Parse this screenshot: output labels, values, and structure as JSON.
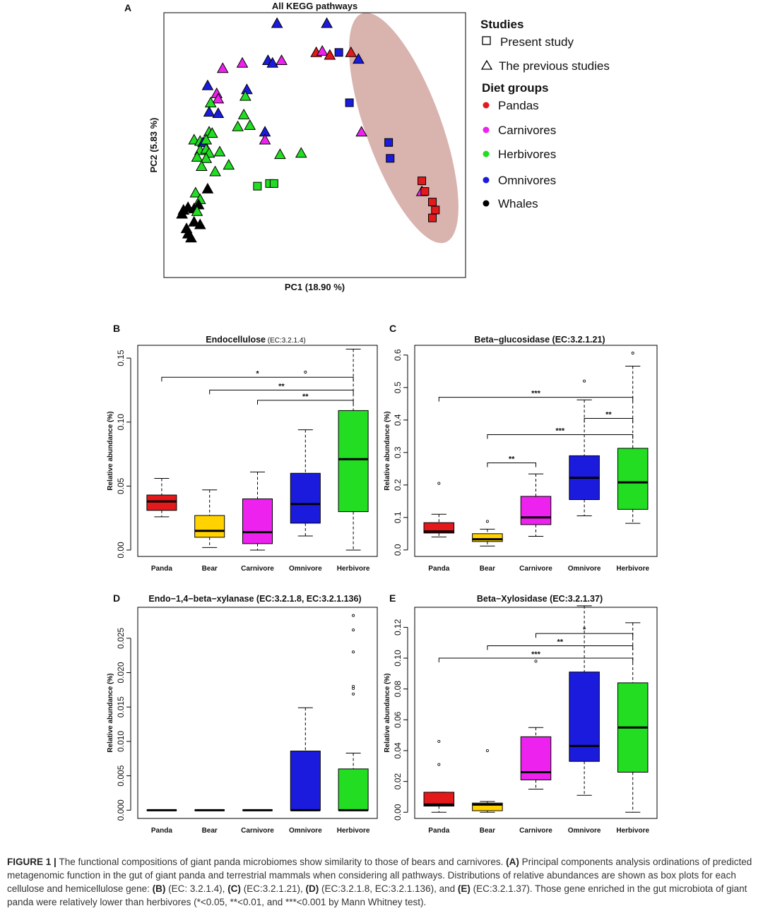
{
  "chart_data": [
    {
      "panel": "A",
      "type": "scatter",
      "title": "All KEGG pathways",
      "xlabel": "PC1 (18.90 %)",
      "ylabel": "PC2 (5.83 %)",
      "xlim": [
        0,
        100
      ],
      "ylim": [
        0,
        100
      ],
      "ticks_shown": false,
      "legend": {
        "position": "right",
        "studies_title": "Studies",
        "studies": [
          {
            "shape": "square",
            "label": "Present study"
          },
          {
            "shape": "triangle",
            "label": "The previous studies"
          }
        ],
        "diet_title": "Diet groups",
        "diet": [
          {
            "group": "panda",
            "label": "Pandas",
            "color": "#e3191c"
          },
          {
            "group": "carnivore",
            "label": "Carnivores",
            "color": "#ee22ee"
          },
          {
            "group": "herbivore",
            "label": "Herbivores",
            "color": "#22dd22"
          },
          {
            "group": "omnivore",
            "label": "Omnivores",
            "color": "#1b1bdd"
          },
          {
            "group": "whale",
            "label": "Whales",
            "color": "#000000"
          }
        ]
      },
      "ellipse": {
        "cx": 79.5,
        "cy": 56.5,
        "rx": 12.5,
        "ry": 46,
        "rotate_deg": -20,
        "color": "#d9b3ad"
      },
      "points": [
        {
          "x": 37.5,
          "y": 96,
          "group": "omnivore",
          "shape": "triangle"
        },
        {
          "x": 54,
          "y": 96,
          "group": "omnivore",
          "shape": "triangle"
        },
        {
          "x": 50.5,
          "y": 85,
          "group": "panda",
          "shape": "triangle"
        },
        {
          "x": 52.5,
          "y": 85.5,
          "group": "carnivore",
          "shape": "triangle"
        },
        {
          "x": 55,
          "y": 84,
          "group": "panda",
          "shape": "triangle"
        },
        {
          "x": 58,
          "y": 85,
          "group": "omnivore",
          "shape": "square"
        },
        {
          "x": 62,
          "y": 85,
          "group": "panda",
          "shape": "triangle"
        },
        {
          "x": 64.5,
          "y": 82.5,
          "group": "omnivore",
          "shape": "triangle"
        },
        {
          "x": 19.5,
          "y": 79,
          "group": "carnivore",
          "shape": "triangle"
        },
        {
          "x": 26,
          "y": 81,
          "group": "carnivore",
          "shape": "triangle"
        },
        {
          "x": 34.5,
          "y": 82,
          "group": "omnivore",
          "shape": "triangle"
        },
        {
          "x": 36,
          "y": 81,
          "group": "omnivore",
          "shape": "triangle"
        },
        {
          "x": 39,
          "y": 82,
          "group": "carnivore",
          "shape": "triangle"
        },
        {
          "x": 14.5,
          "y": 72.5,
          "group": "omnivore",
          "shape": "triangle"
        },
        {
          "x": 17.5,
          "y": 69.5,
          "group": "carnivore",
          "shape": "triangle"
        },
        {
          "x": 18,
          "y": 67.5,
          "group": "carnivore",
          "shape": "triangle"
        },
        {
          "x": 15.5,
          "y": 66,
          "group": "herbivore",
          "shape": "triangle"
        },
        {
          "x": 27.5,
          "y": 71,
          "group": "omnivore",
          "shape": "triangle"
        },
        {
          "x": 27,
          "y": 68.5,
          "group": "herbivore",
          "shape": "triangle"
        },
        {
          "x": 15,
          "y": 62.5,
          "group": "omnivore",
          "shape": "triangle"
        },
        {
          "x": 18,
          "y": 62,
          "group": "omnivore",
          "shape": "triangle"
        },
        {
          "x": 26.5,
          "y": 61.5,
          "group": "herbivore",
          "shape": "triangle"
        },
        {
          "x": 61.5,
          "y": 66,
          "group": "omnivore",
          "shape": "square"
        },
        {
          "x": 24.5,
          "y": 57,
          "group": "herbivore",
          "shape": "triangle"
        },
        {
          "x": 28.5,
          "y": 57.5,
          "group": "herbivore",
          "shape": "triangle"
        },
        {
          "x": 33.5,
          "y": 55,
          "group": "omnivore",
          "shape": "triangle"
        },
        {
          "x": 15,
          "y": 55,
          "group": "herbivore",
          "shape": "triangle"
        },
        {
          "x": 16,
          "y": 54.5,
          "group": "herbivore",
          "shape": "triangle"
        },
        {
          "x": 65.5,
          "y": 55,
          "group": "carnivore",
          "shape": "triangle"
        },
        {
          "x": 10,
          "y": 52,
          "group": "herbivore",
          "shape": "triangle"
        },
        {
          "x": 12,
          "y": 51.5,
          "group": "herbivore",
          "shape": "triangle"
        },
        {
          "x": 13,
          "y": 51,
          "group": "omnivore",
          "shape": "triangle"
        },
        {
          "x": 14,
          "y": 52,
          "group": "herbivore",
          "shape": "triangle"
        },
        {
          "x": 33.5,
          "y": 52,
          "group": "carnivore",
          "shape": "triangle"
        },
        {
          "x": 74.5,
          "y": 51,
          "group": "omnivore",
          "shape": "square"
        },
        {
          "x": 12,
          "y": 48,
          "group": "herbivore",
          "shape": "triangle"
        },
        {
          "x": 14,
          "y": 48.5,
          "group": "herbivore",
          "shape": "triangle"
        },
        {
          "x": 15,
          "y": 47,
          "group": "herbivore",
          "shape": "triangle"
        },
        {
          "x": 18.5,
          "y": 47.5,
          "group": "herbivore",
          "shape": "triangle"
        },
        {
          "x": 11,
          "y": 45.5,
          "group": "herbivore",
          "shape": "triangle"
        },
        {
          "x": 14,
          "y": 45,
          "group": "herbivore",
          "shape": "triangle"
        },
        {
          "x": 38.5,
          "y": 46.5,
          "group": "herbivore",
          "shape": "triangle"
        },
        {
          "x": 45.5,
          "y": 47,
          "group": "herbivore",
          "shape": "triangle"
        },
        {
          "x": 75,
          "y": 45,
          "group": "omnivore",
          "shape": "square"
        },
        {
          "x": 12.5,
          "y": 42,
          "group": "herbivore",
          "shape": "triangle"
        },
        {
          "x": 21.5,
          "y": 42.5,
          "group": "herbivore",
          "shape": "triangle"
        },
        {
          "x": 17,
          "y": 40,
          "group": "herbivore",
          "shape": "triangle"
        },
        {
          "x": 85.5,
          "y": 36.5,
          "group": "panda",
          "shape": "square"
        },
        {
          "x": 31,
          "y": 34.5,
          "group": "herbivore",
          "shape": "square"
        },
        {
          "x": 35,
          "y": 35.5,
          "group": "herbivore",
          "shape": "square"
        },
        {
          "x": 36.5,
          "y": 35.5,
          "group": "herbivore",
          "shape": "square"
        },
        {
          "x": 14.5,
          "y": 33.5,
          "group": "whale",
          "shape": "triangle"
        },
        {
          "x": 10.5,
          "y": 32,
          "group": "herbivore",
          "shape": "triangle"
        },
        {
          "x": 85.5,
          "y": 32.5,
          "group": "carnivore",
          "shape": "triangle"
        },
        {
          "x": 86.5,
          "y": 32.5,
          "group": "panda",
          "shape": "square"
        },
        {
          "x": 12,
          "y": 29.5,
          "group": "herbivore",
          "shape": "triangle"
        },
        {
          "x": 89,
          "y": 28.5,
          "group": "panda",
          "shape": "square"
        },
        {
          "x": 11.5,
          "y": 27.5,
          "group": "whale",
          "shape": "triangle"
        },
        {
          "x": 6.5,
          "y": 25.5,
          "group": "whale",
          "shape": "triangle"
        },
        {
          "x": 8,
          "y": 26.5,
          "group": "whale",
          "shape": "triangle"
        },
        {
          "x": 10,
          "y": 26,
          "group": "whale",
          "shape": "triangle"
        },
        {
          "x": 11,
          "y": 25,
          "group": "herbivore",
          "shape": "triangle"
        },
        {
          "x": 90,
          "y": 25.5,
          "group": "panda",
          "shape": "square"
        },
        {
          "x": 6,
          "y": 24,
          "group": "whale",
          "shape": "triangle"
        },
        {
          "x": 89,
          "y": 22.5,
          "group": "panda",
          "shape": "square"
        },
        {
          "x": 10,
          "y": 21,
          "group": "whale",
          "shape": "triangle"
        },
        {
          "x": 12,
          "y": 20,
          "group": "whale",
          "shape": "triangle"
        },
        {
          "x": 7.5,
          "y": 18.5,
          "group": "whale",
          "shape": "triangle"
        },
        {
          "x": 8,
          "y": 16.5,
          "group": "whale",
          "shape": "triangle"
        },
        {
          "x": 9,
          "y": 15,
          "group": "whale",
          "shape": "triangle"
        }
      ]
    },
    {
      "panel": "B",
      "type": "box",
      "title": "Endocellulose",
      "title_suffix": "(EC:3.2.1.4)",
      "xlabel": "",
      "ylabel": "Relative abundance (%)",
      "categories": [
        "Panda",
        "Bear",
        "Carnivore",
        "Omnivore",
        "Herbivore"
      ],
      "ylim": [
        -0.005,
        0.16
      ],
      "yticks": [
        0.0,
        0.05,
        0.1,
        0.15
      ],
      "ytick_labels": [
        "0.00",
        "0.05",
        "0.10",
        "0.15"
      ],
      "boxes": [
        {
          "category": "Panda",
          "min": 0.026,
          "q1": 0.031,
          "median": 0.038,
          "q3": 0.043,
          "max": 0.056,
          "outliers": [],
          "color": "#e3191c"
        },
        {
          "category": "Bear",
          "min": 0.002,
          "q1": 0.01,
          "median": 0.015,
          "q3": 0.027,
          "max": 0.047,
          "outliers": [],
          "color": "#ffd200"
        },
        {
          "category": "Carnivore",
          "min": 0.0,
          "q1": 0.005,
          "median": 0.014,
          "q3": 0.04,
          "max": 0.061,
          "outliers": [],
          "color": "#ee22ee"
        },
        {
          "category": "Omnivore",
          "min": 0.011,
          "q1": 0.021,
          "median": 0.036,
          "q3": 0.06,
          "max": 0.094,
          "outliers": [
            0.139
          ],
          "color": "#1b1bdd"
        },
        {
          "category": "Herbivore",
          "min": 0.0,
          "q1": 0.03,
          "median": 0.071,
          "q3": 0.109,
          "max": 0.157,
          "outliers": [],
          "color": "#22dd22"
        }
      ],
      "significance": [
        {
          "from": "Panda",
          "to": "Herbivore",
          "y": 0.135,
          "label": "*"
        },
        {
          "from": "Bear",
          "to": "Herbivore",
          "y": 0.125,
          "label": "**"
        },
        {
          "from": "Carnivore",
          "to": "Herbivore",
          "y": 0.117,
          "label": "**"
        }
      ]
    },
    {
      "panel": "C",
      "type": "box",
      "title": "Beta−glucosidase (EC:3.2.1.21)",
      "xlabel": "",
      "ylabel": "Relative abundance (%)",
      "categories": [
        "Panda",
        "Bear",
        "Carnivore",
        "Omnivore",
        "Herbivore"
      ],
      "ylim": [
        -0.02,
        0.63
      ],
      "yticks": [
        0.0,
        0.1,
        0.2,
        0.3,
        0.4,
        0.5,
        0.6
      ],
      "ytick_labels": [
        "0.0",
        "0.1",
        "0.2",
        "0.3",
        "0.4",
        "0.5",
        "0.6"
      ],
      "boxes": [
        {
          "category": "Panda",
          "min": 0.04,
          "q1": 0.052,
          "median": 0.057,
          "q3": 0.084,
          "max": 0.11,
          "outliers": [
            0.205
          ],
          "color": "#e3191c"
        },
        {
          "category": "Bear",
          "min": 0.012,
          "q1": 0.026,
          "median": 0.033,
          "q3": 0.05,
          "max": 0.064,
          "outliers": [
            0.088
          ],
          "color": "#ffd200"
        },
        {
          "category": "Carnivore",
          "min": 0.042,
          "q1": 0.078,
          "median": 0.1,
          "q3": 0.165,
          "max": 0.234,
          "outliers": [],
          "color": "#ee22ee"
        },
        {
          "category": "Omnivore",
          "min": 0.105,
          "q1": 0.155,
          "median": 0.222,
          "q3": 0.29,
          "max": 0.462,
          "outliers": [
            0.52
          ],
          "color": "#1b1bdd"
        },
        {
          "category": "Herbivore",
          "min": 0.082,
          "q1": 0.125,
          "median": 0.208,
          "q3": 0.313,
          "max": 0.566,
          "outliers": [
            0.606
          ],
          "color": "#22dd22"
        }
      ],
      "significance": [
        {
          "from": "Panda",
          "to": "Herbivore",
          "y": 0.47,
          "label": "***"
        },
        {
          "from": "Omnivore",
          "to": "Herbivore",
          "y": 0.405,
          "label": "**"
        },
        {
          "from": "Bear",
          "to": "Herbivore",
          "y": 0.355,
          "label": "***"
        },
        {
          "from": "Bear",
          "to": "Carnivore",
          "y": 0.268,
          "label": "**"
        }
      ]
    },
    {
      "panel": "D",
      "type": "box",
      "title": "Endo−1,4−beta−xylanase (EC:3.2.1.8, EC:3.2.1.136)",
      "xlabel": "",
      "ylabel": "Relative abundance (%)",
      "categories": [
        "Panda",
        "Bear",
        "Carnivore",
        "Omnivore",
        "Herbivore"
      ],
      "ylim": [
        -0.0012,
        0.0295
      ],
      "yticks": [
        0.0,
        0.005,
        0.01,
        0.015,
        0.02,
        0.025
      ],
      "ytick_labels": [
        "0.000",
        "0.005",
        "0.010",
        "0.015",
        "0.020",
        "0.025"
      ],
      "boxes": [
        {
          "category": "Panda",
          "min": 0,
          "q1": 0,
          "median": 0,
          "q3": 0,
          "max": 0,
          "outliers": [],
          "color": "#e3191c"
        },
        {
          "category": "Bear",
          "min": 0,
          "q1": 0,
          "median": 0,
          "q3": 0,
          "max": 0,
          "outliers": [],
          "color": "#ffd200"
        },
        {
          "category": "Carnivore",
          "min": 0,
          "q1": 0,
          "median": 0,
          "q3": 0,
          "max": 0,
          "outliers": [],
          "color": "#ee22ee"
        },
        {
          "category": "Omnivore",
          "min": 0.0,
          "q1": 0.0,
          "median": 0.0,
          "q3": 0.0086,
          "max": 0.0149,
          "outliers": [],
          "color": "#1b1bdd"
        },
        {
          "category": "Herbivore",
          "min": 0.0,
          "q1": 0.0,
          "median": 0.0,
          "q3": 0.006,
          "max": 0.0083,
          "outliers": [
            0.0169,
            0.0177,
            0.018,
            0.023,
            0.0262,
            0.0283
          ],
          "color": "#22dd22"
        }
      ],
      "significance": []
    },
    {
      "panel": "E",
      "type": "box",
      "title": "Beta−Xylosidase (EC:3.2.1.37)",
      "xlabel": "",
      "ylabel": "Relative abundance (%)",
      "categories": [
        "Panda",
        "Bear",
        "Carnivore",
        "Omnivore",
        "Herbivore"
      ],
      "ylim": [
        -0.004,
        0.133
      ],
      "yticks": [
        0.0,
        0.02,
        0.04,
        0.06,
        0.08,
        0.1,
        0.12
      ],
      "ytick_labels": [
        "0.00",
        "0.02",
        "0.04",
        "0.06",
        "0.08",
        "0.10",
        "0.12"
      ],
      "boxes": [
        {
          "category": "Panda",
          "min": 0.0,
          "q1": 0.004,
          "median": 0.005,
          "q3": 0.013,
          "max": 0.013,
          "outliers": [
            0.031,
            0.046
          ],
          "color": "#e3191c"
        },
        {
          "category": "Bear",
          "min": 0.0,
          "q1": 0.001,
          "median": 0.005,
          "q3": 0.006,
          "max": 0.007,
          "outliers": [
            0.04
          ],
          "color": "#ffd200"
        },
        {
          "category": "Carnivore",
          "min": 0.015,
          "q1": 0.021,
          "median": 0.026,
          "q3": 0.049,
          "max": 0.055,
          "outliers": [
            0.098
          ],
          "color": "#ee22ee"
        },
        {
          "category": "Omnivore",
          "min": 0.011,
          "q1": 0.033,
          "median": 0.043,
          "q3": 0.091,
          "max": 0.134,
          "outliers": [],
          "color": "#1b1bdd"
        },
        {
          "category": "Herbivore",
          "min": 0.0,
          "q1": 0.026,
          "median": 0.055,
          "q3": 0.084,
          "max": 0.123,
          "outliers": [],
          "color": "#22dd22"
        }
      ],
      "significance": [
        {
          "from": "Carnivore",
          "to": "Herbivore",
          "y": 0.116,
          "label": "*"
        },
        {
          "from": "Bear",
          "to": "Herbivore",
          "y": 0.108,
          "label": "**"
        },
        {
          "from": "Panda",
          "to": "Herbivore",
          "y": 0.1,
          "label": "***"
        }
      ]
    }
  ],
  "caption": {
    "label": "FIGURE 1 |",
    "segments": [
      {
        "t": "The functional compositions of giant panda microbiomes show similarity to those of bears and carnivores. ",
        "b": false
      },
      {
        "t": "(A)",
        "b": true
      },
      {
        "t": " Principal components analysis ordinations of predicted metagenomic function in the gut of giant panda and terrestrial mammals when considering all pathways. Distributions of relative abundances are shown as box plots for each cellulose and hemicellulose gene: ",
        "b": false
      },
      {
        "t": "(B)",
        "b": true
      },
      {
        "t": " (EC: 3.2.1.4), ",
        "b": false
      },
      {
        "t": "(C)",
        "b": true
      },
      {
        "t": " (EC:3.2.1.21), ",
        "b": false
      },
      {
        "t": "(D)",
        "b": true
      },
      {
        "t": " (EC:3.2.1.8, EC:3.2.1.136), and ",
        "b": false
      },
      {
        "t": "(E)",
        "b": true
      },
      {
        "t": " (EC:3.2.1.37). Those gene enriched in the gut microbiota of giant panda were relatively lower than herbivores (*<0.05, **<0.01, and ***<0.001 by Mann Whitney test).",
        "b": false
      }
    ]
  }
}
